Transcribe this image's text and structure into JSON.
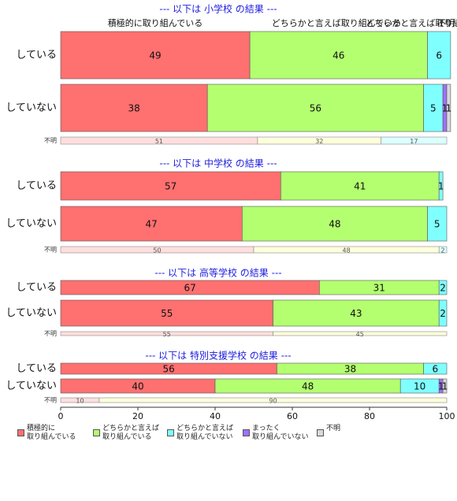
{
  "chart_data": {
    "type": "bar",
    "orientation": "horizontal",
    "stacked": true,
    "header_labels": [
      "積極的に取り組んでいる",
      "どちらかと言えば取り組んでいる",
      "どちらかと言えば取り組んでいない",
      "不明"
    ],
    "series": [
      {
        "name": "積極的に\n取り組んでいる",
        "color": "#ff7070"
      },
      {
        "name": "どちらかと言えば\n取り組んでいる",
        "color": "#b3ff70"
      },
      {
        "name": "どちらかと言えば\n取り組んでいない",
        "color": "#80ffff"
      },
      {
        "name": "まったく\n取り組んでいない",
        "color": "#a070ff"
      },
      {
        "name": "不明",
        "color": "#d9d9d9"
      }
    ],
    "xlim": [
      0,
      100
    ],
    "xticks": [
      0,
      20,
      40,
      60,
      80,
      100
    ],
    "panels": [
      {
        "title": "--- 以下は 小学校 の結果 ---",
        "categories": [
          "している",
          "していない"
        ],
        "values": [
          [
            49,
            46,
            6,
            null,
            null
          ],
          [
            38,
            56,
            5,
            1,
            1
          ]
        ],
        "unknown": {
          "label": "不明",
          "values": [
            51,
            32,
            17
          ],
          "colors": [
            "#ffdede",
            "#fdffdc",
            "#dcffff"
          ]
        }
      },
      {
        "title": "--- 以下は 中学校 の結果 ---",
        "categories": [
          "している",
          "していない"
        ],
        "values": [
          [
            57,
            41,
            1,
            null,
            null
          ],
          [
            47,
            48,
            5,
            null,
            null
          ]
        ],
        "unknown": {
          "label": "不明",
          "values": [
            50,
            48,
            2
          ],
          "colors": [
            "#ffdede",
            "#fdffdc",
            "#dcffff"
          ]
        }
      },
      {
        "title": "--- 以下は 高等学校 の結果 ---",
        "categories": [
          "している",
          "していない"
        ],
        "values": [
          [
            67,
            31,
            2,
            null,
            null
          ],
          [
            55,
            43,
            2,
            null,
            null
          ]
        ],
        "unknown": {
          "label": "不明",
          "values": [
            55,
            45
          ],
          "colors": [
            "#ffdede",
            "#fdffdc"
          ]
        }
      },
      {
        "title": "--- 以下は 特別支援学校 の結果 ---",
        "categories": [
          "している",
          "していない"
        ],
        "values": [
          [
            56,
            38,
            6,
            null,
            null
          ],
          [
            40,
            48,
            10,
            1,
            1
          ]
        ],
        "unknown": {
          "label": "不明",
          "values": [
            10,
            90
          ],
          "colors": [
            "#ffdede",
            "#fdffdc"
          ]
        }
      }
    ]
  }
}
